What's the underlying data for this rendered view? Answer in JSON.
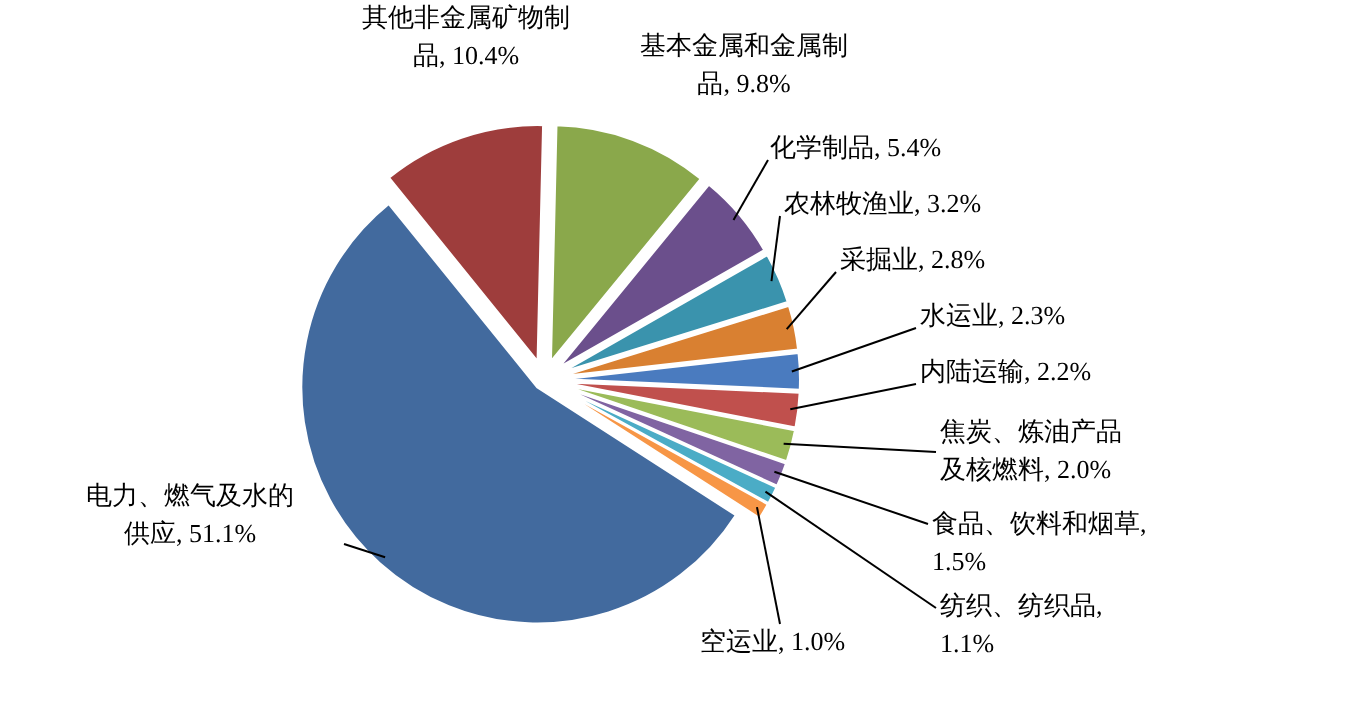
{
  "chart_data": {
    "type": "pie",
    "categories": [
      "其他非金属矿物制品",
      "基本金属和金属制品",
      "化学制品",
      "农林牧渔业",
      "采掘业",
      "水运业",
      "内陆运输",
      "焦炭、炼油产品及核燃料",
      "食品、饮料和烟草",
      "纺织、纺织品",
      "空运业",
      "电力、燃气及水的供应"
    ],
    "values": [
      10.4,
      9.8,
      5.4,
      3.2,
      2.8,
      2.3,
      2.2,
      2.0,
      1.5,
      1.1,
      1.0,
      51.1
    ],
    "colors": [
      "#9e3d3c",
      "#8aa84b",
      "#6b4f8c",
      "#3a93ad",
      "#d98031",
      "#4a7bbf",
      "#c0504d",
      "#9bbb59",
      "#8064a2",
      "#4bacc6",
      "#f79646",
      "#426a9e"
    ],
    "data_labels": true,
    "value_labels": [
      ", 10.4%",
      ", 9.8%",
      ", 5.4%",
      ", 3.2%",
      ", 2.8%",
      ", 2.3%",
      ", 2.2%",
      ", 2.0%",
      ", 1.5%",
      ", 1.1%",
      ", 1.0%",
      ", 51.1%"
    ]
  }
}
